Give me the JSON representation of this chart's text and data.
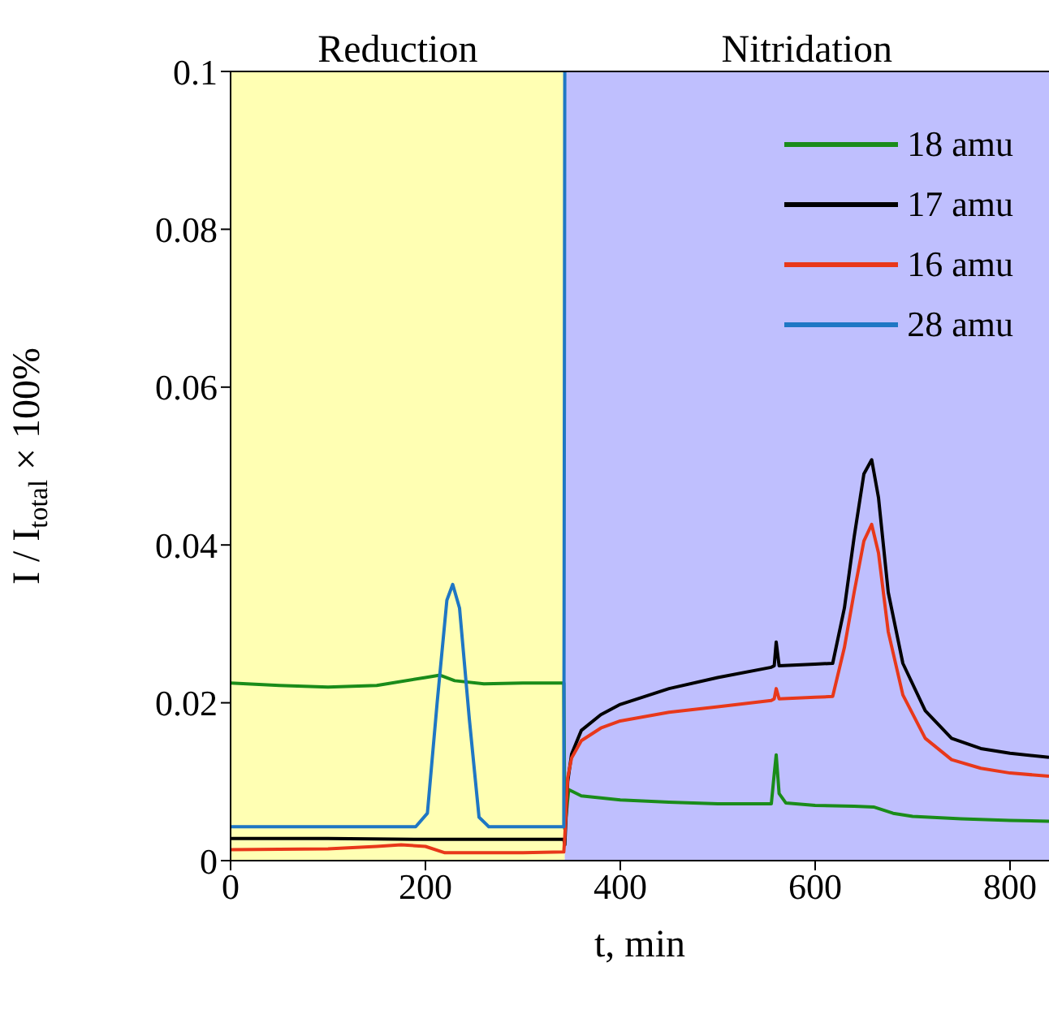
{
  "chart_data": {
    "type": "line",
    "xlabel": "t, min",
    "ylabel": "I / I$_{total}$ × 100%",
    "xlim": [
      0,
      840
    ],
    "xticks": [
      0,
      200,
      400,
      600,
      800
    ],
    "ylim": [
      0,
      0.1
    ],
    "yticks": [
      0,
      0.02,
      0.04,
      0.06,
      0.08,
      0.1
    ],
    "grid": false,
    "legend": "top right",
    "marker": "none",
    "line_style": "solid",
    "bands": [
      {
        "axis": "x",
        "from": 0,
        "to": 343,
        "label": "Reduction",
        "color": "#ffffb3"
      },
      {
        "axis": "x",
        "from": 343,
        "to": 840,
        "label": "Nitridation",
        "color": "#bfbffe"
      }
    ],
    "series": [
      {
        "name": "18 amu",
        "color": "#1a8c1a",
        "x": [
          0,
          50,
          100,
          150,
          200,
          215,
          230,
          260,
          300,
          342,
          343,
          347,
          360,
          400,
          450,
          500,
          555,
          558,
          560,
          563,
          570,
          600,
          640,
          660,
          680,
          700,
          750,
          800,
          840
        ],
        "values": [
          0.0225,
          0.0222,
          0.022,
          0.0222,
          0.0232,
          0.0235,
          0.0228,
          0.0224,
          0.0225,
          0.0225,
          0.004,
          0.009,
          0.0082,
          0.0077,
          0.0074,
          0.0072,
          0.0072,
          0.011,
          0.0134,
          0.0085,
          0.0073,
          0.007,
          0.0069,
          0.0068,
          0.006,
          0.0056,
          0.0053,
          0.0051,
          0.005
        ]
      },
      {
        "name": "17 amu",
        "color": "#000000",
        "x": [
          0,
          100,
          200,
          300,
          342,
          343,
          346,
          350,
          360,
          380,
          400,
          450,
          500,
          555,
          558,
          560,
          563,
          600,
          618,
          630,
          640,
          650,
          658,
          665,
          675,
          690,
          713,
          740,
          770,
          800,
          840
        ],
        "values": [
          0.0028,
          0.0028,
          0.0027,
          0.0027,
          0.0027,
          0.002,
          0.01,
          0.0135,
          0.0165,
          0.0185,
          0.0198,
          0.0218,
          0.0232,
          0.0245,
          0.0247,
          0.0277,
          0.0247,
          0.0249,
          0.025,
          0.032,
          0.041,
          0.049,
          0.0508,
          0.046,
          0.034,
          0.025,
          0.019,
          0.0155,
          0.0142,
          0.0136,
          0.0131
        ]
      },
      {
        "name": "16 amu",
        "color": "#e8381a",
        "x": [
          0,
          100,
          150,
          175,
          200,
          220,
          300,
          342,
          343,
          346,
          350,
          360,
          380,
          400,
          450,
          500,
          555,
          558,
          560,
          563,
          600,
          618,
          630,
          640,
          650,
          658,
          665,
          675,
          690,
          713,
          740,
          770,
          800,
          840
        ],
        "values": [
          0.0014,
          0.0015,
          0.0018,
          0.002,
          0.0018,
          0.001,
          0.001,
          0.0011,
          0.003,
          0.0105,
          0.013,
          0.0152,
          0.0168,
          0.0177,
          0.0188,
          0.0195,
          0.0203,
          0.0205,
          0.0218,
          0.0205,
          0.0207,
          0.0208,
          0.027,
          0.034,
          0.0405,
          0.0426,
          0.039,
          0.029,
          0.021,
          0.0155,
          0.0128,
          0.0117,
          0.0111,
          0.0107
        ]
      },
      {
        "name": "28 amu",
        "color": "#1f77c4",
        "x": [
          0,
          100,
          190,
          202,
          212,
          222,
          228,
          235,
          245,
          255,
          265,
          300,
          342,
          343
        ],
        "values": [
          0.0043,
          0.0043,
          0.0043,
          0.006,
          0.02,
          0.033,
          0.035,
          0.032,
          0.018,
          0.0055,
          0.0043,
          0.0043,
          0.0043,
          0.1
        ]
      }
    ]
  }
}
